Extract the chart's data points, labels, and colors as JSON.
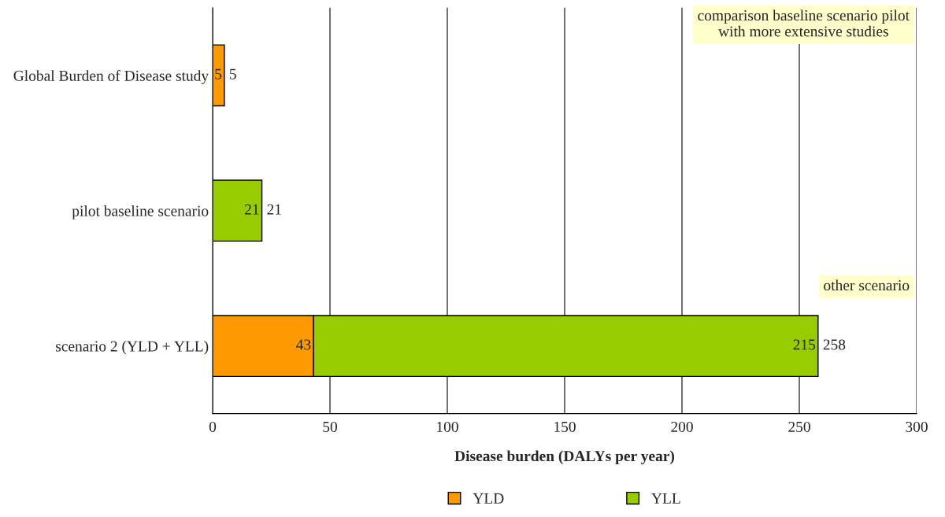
{
  "chart_data": {
    "type": "bar",
    "orientation": "horizontal",
    "stacked": true,
    "categories": [
      "Global Burden of Disease study",
      "pilot baseline scenario",
      "scenario 2 (YLD + YLL)"
    ],
    "series": [
      {
        "name": "YLD",
        "color": "#ff9900",
        "values": [
          5,
          null,
          43
        ]
      },
      {
        "name": "YLL",
        "color": "#99cc00",
        "values": [
          null,
          21,
          215
        ]
      }
    ],
    "data_labels": true,
    "totals": [
      "5",
      "21",
      "258"
    ],
    "xlabel": "Disease burden (DALYs per year)",
    "xlim": [
      0,
      300
    ],
    "xticks": [
      0,
      50,
      100,
      150,
      200,
      250,
      300
    ],
    "grid": "x",
    "legend": "bottom",
    "annotations": [
      "comparison baseline scenario pilot\nwith more extensive studies",
      "other scenario"
    ]
  }
}
